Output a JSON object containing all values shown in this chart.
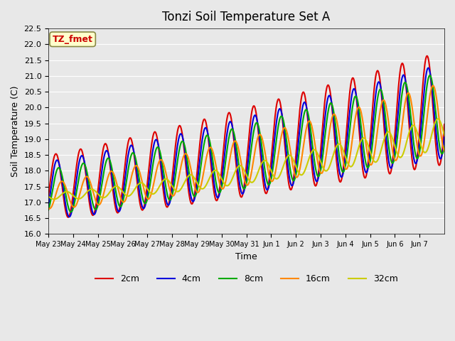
{
  "title": "Tonzi Soil Temperature Set A",
  "xlabel": "Time",
  "ylabel": "Soil Temperature (C)",
  "annotation": "TZ_fmet",
  "annotation_color": "#cc0000",
  "annotation_bg": "#ffffcc",
  "annotation_border": "#888844",
  "ylim": [
    16.0,
    22.5
  ],
  "yticks": [
    16.0,
    16.5,
    17.0,
    17.5,
    18.0,
    18.5,
    19.0,
    19.5,
    20.0,
    20.5,
    21.0,
    21.5,
    22.0,
    22.5
  ],
  "plot_bg": "#e8e8e8",
  "grid_color": "#ffffff",
  "series": {
    "2cm": {
      "color": "#dd0000",
      "lw": 1.5
    },
    "4cm": {
      "color": "#0000dd",
      "lw": 1.5
    },
    "8cm": {
      "color": "#00aa00",
      "lw": 1.5
    },
    "16cm": {
      "color": "#ff8800",
      "lw": 1.5
    },
    "32cm": {
      "color": "#cccc00",
      "lw": 1.5
    }
  },
  "x_tick_labels": [
    "May 23",
    "May 24",
    "May 25",
    "May 26",
    "May 27",
    "May 28",
    "May 29",
    "May 30",
    "May 31",
    "Jun 1",
    "Jun 2",
    "Jun 3",
    "Jun 4",
    "Jun 5",
    "Jun 6",
    "Jun 7"
  ],
  "n_days": 16,
  "points_per_day": 48
}
